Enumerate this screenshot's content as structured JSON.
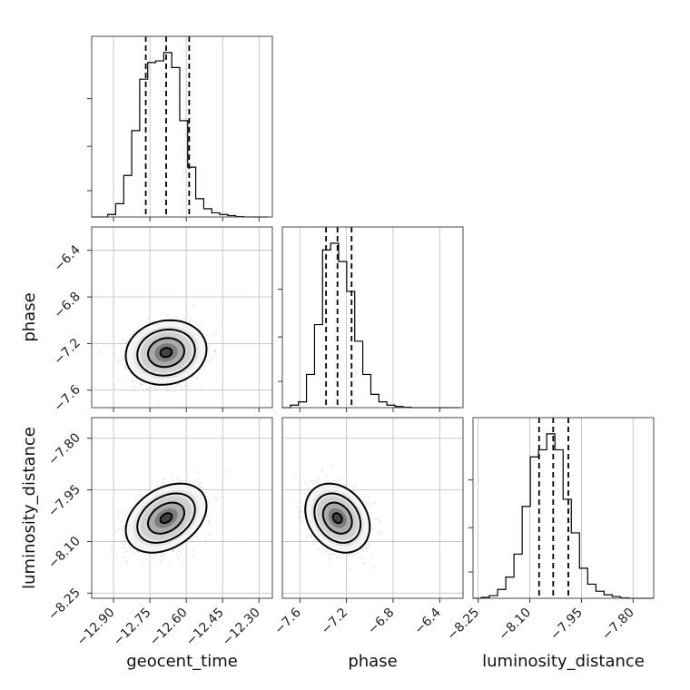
{
  "chart_data": {
    "type": "corner",
    "parameters": [
      "geocent_time",
      "phase",
      "luminosity_distance"
    ],
    "axes": {
      "geocent_time": {
        "label": "geocent_time",
        "range": [
          -12.99,
          -12.245
        ],
        "ticks": [
          -12.9,
          -12.75,
          -12.6,
          -12.45,
          -12.3
        ],
        "tick_labels": [
          "−12.90",
          "−12.75",
          "−12.60",
          "−12.45",
          "−12.30"
        ],
        "quantiles": [
          -12.767,
          -12.683,
          -12.588
        ],
        "hist": {
          "start": -12.99,
          "width": 0.033,
          "counts": [
            0,
            0,
            0.015,
            0.08,
            0.25,
            0.52,
            0.83,
            0.93,
            0.94,
            0.99,
            0.9,
            0.58,
            0.3,
            0.11,
            0.05,
            0.025,
            0.015,
            0.008,
            0.002,
            0,
            0,
            0
          ]
        }
      },
      "phase": {
        "label": "phase",
        "range": [
          -7.75,
          -6.2
        ],
        "ticks": [
          -7.6,
          -7.2,
          -6.8,
          -6.4
        ],
        "tick_labels": [
          "−7.6",
          "−7.2",
          "−6.8",
          "−6.4"
        ],
        "quantiles": [
          -7.375,
          -7.277,
          -7.156
        ],
        "hist": {
          "start": -7.75,
          "width": 0.069,
          "counts": [
            0,
            0.015,
            0.035,
            0.2,
            0.5,
            0.95,
            0.99,
            0.88,
            0.7,
            0.4,
            0.2,
            0.08,
            0.035,
            0.015,
            0.007,
            0.003,
            0,
            0,
            0,
            0,
            0,
            0
          ]
        }
      },
      "luminosity_distance": {
        "label": "luminosity_distance",
        "range": [
          -8.265,
          -7.74
        ],
        "ticks": [
          -8.25,
          -8.1,
          -7.95,
          -7.8
        ],
        "tick_labels": [
          "−8.25",
          "−8.10",
          "−7.95",
          "−7.80"
        ],
        "quantiles": [
          -8.073,
          -8.032,
          -7.988
        ],
        "hist": {
          "start": -8.265,
          "width": 0.0238,
          "counts": [
            0,
            0.005,
            0.015,
            0.05,
            0.12,
            0.25,
            0.52,
            0.8,
            0.84,
            0.93,
            0.84,
            0.56,
            0.37,
            0.17,
            0.08,
            0.04,
            0.02,
            0.01,
            0.003,
            0,
            0,
            0
          ]
        }
      }
    },
    "pairs": [
      {
        "x": "geocent_time",
        "y": "phase",
        "center": [
          -12.683,
          -7.277
        ],
        "spread": [
          0.068,
          0.113
        ],
        "rho": 0.1
      },
      {
        "x": "geocent_time",
        "y": "luminosity_distance",
        "center": [
          -12.683,
          -8.032
        ],
        "spread": [
          0.068,
          0.041
        ],
        "rho": 0.35
      },
      {
        "x": "phase",
        "y": "luminosity_distance",
        "center": [
          -7.277,
          -8.032
        ],
        "spread": [
          0.113,
          0.041
        ],
        "rho": -0.25
      }
    ],
    "grid": true
  }
}
